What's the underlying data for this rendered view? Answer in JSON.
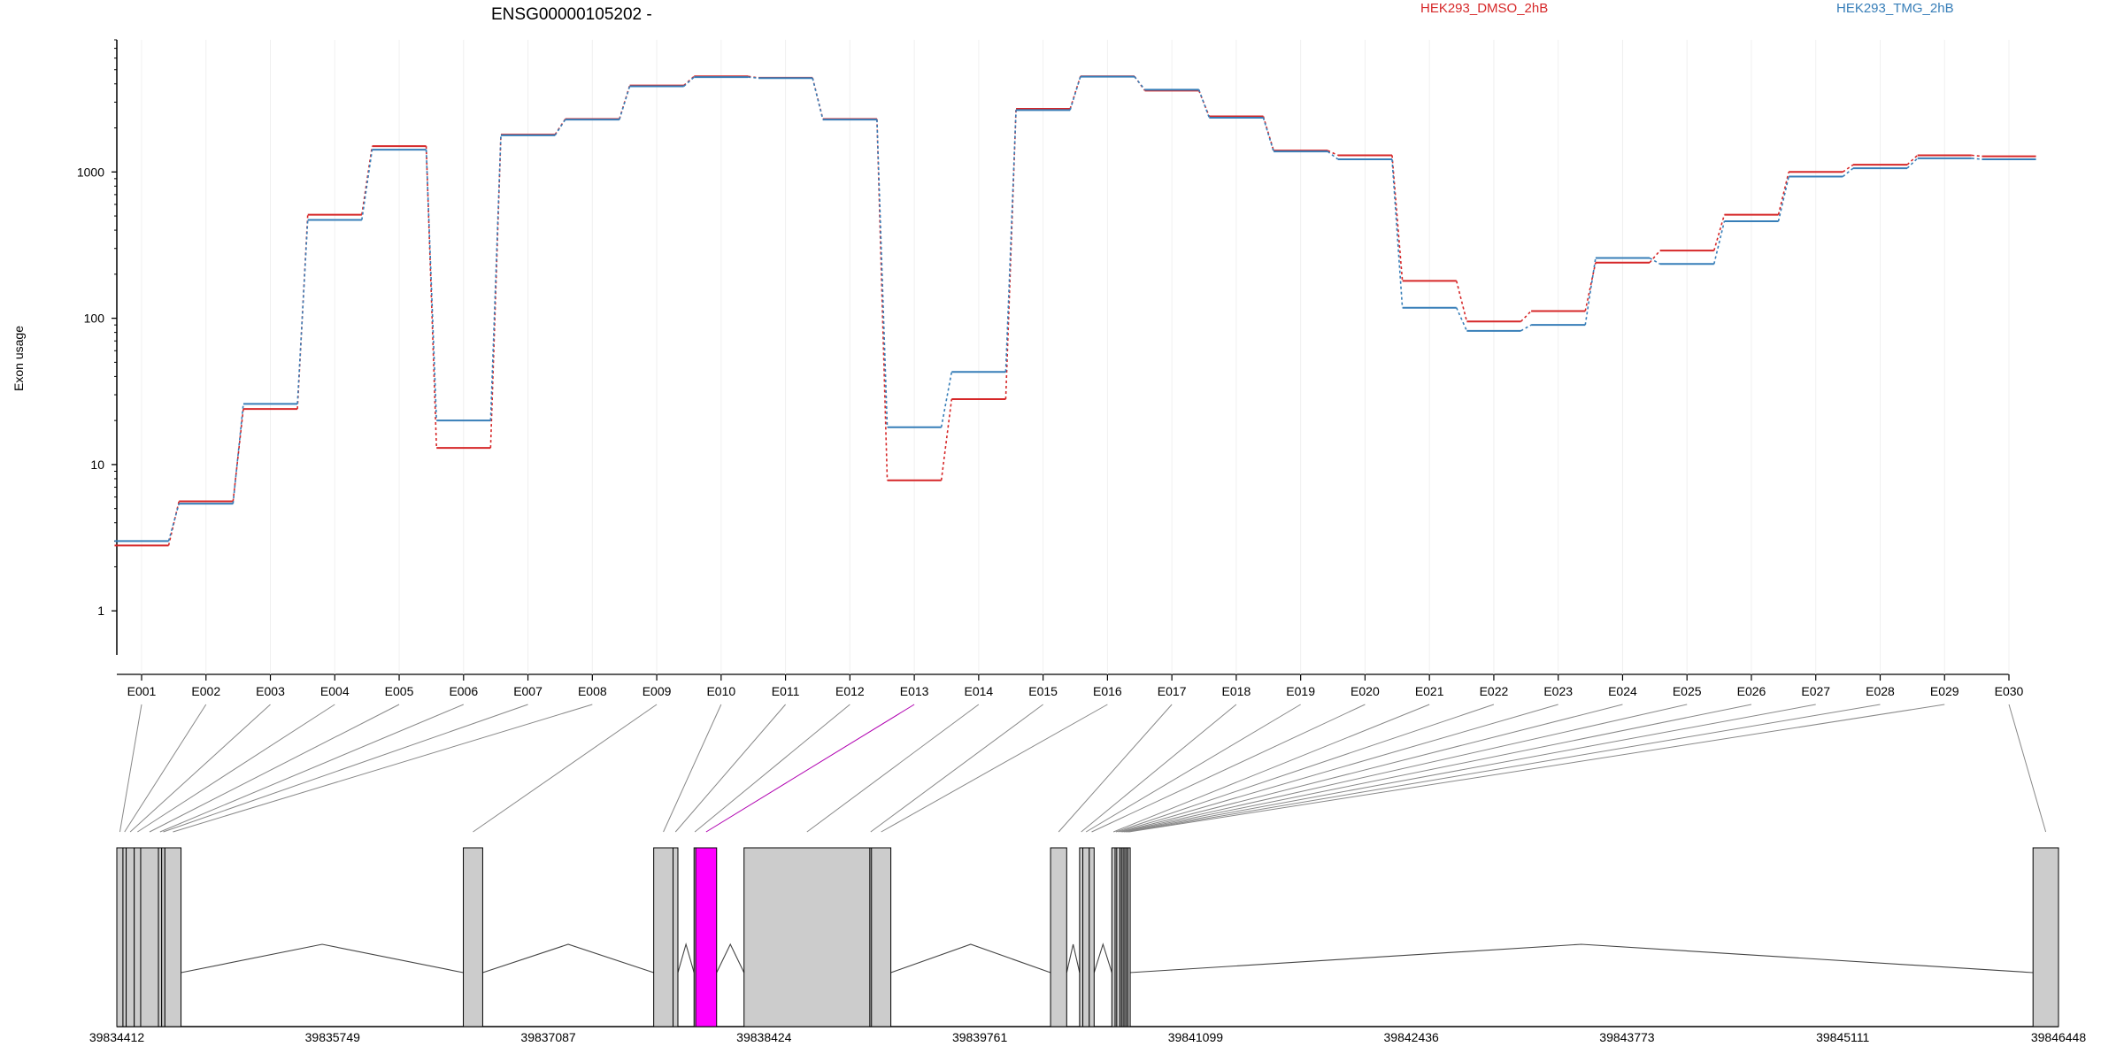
{
  "title": "ENSG00000105202 -",
  "ylabel": "Exon usage",
  "colors": {
    "series1": "#d62728",
    "series2": "#377eb8",
    "highlight": "#ff00ff",
    "exon_fill": "#cccccc"
  },
  "chart_data": {
    "type": "line",
    "title": "ENSG00000105202 -",
    "ylabel": "Exon usage",
    "xlabel": "",
    "yscale": "log",
    "ylim": [
      0.5,
      8000
    ],
    "yticks": [
      {
        "value": 1,
        "label": "1"
      },
      {
        "value": 10,
        "label": "10"
      },
      {
        "value": 100,
        "label": "100"
      },
      {
        "value": 1000,
        "label": "1000"
      }
    ],
    "legend_position": "top",
    "categories": [
      "E001",
      "E002",
      "E003",
      "E004",
      "E005",
      "E006",
      "E007",
      "E008",
      "E009",
      "E010",
      "E011",
      "E012",
      "E013",
      "E014",
      "E015",
      "E016",
      "E017",
      "E018",
      "E019",
      "E020",
      "E021",
      "E022",
      "E023",
      "E024",
      "E025",
      "E026",
      "E027",
      "E028",
      "E029",
      "E030"
    ],
    "series": [
      {
        "name": "HEK293_DMSO_2hB",
        "color": "#d62728",
        "values": [
          2.8,
          5.6,
          24,
          510,
          1500,
          13,
          1800,
          2300,
          3900,
          4500,
          4400,
          2300,
          7.8,
          28,
          2700,
          4500,
          3600,
          2400,
          1400,
          1300,
          180,
          95,
          112,
          240,
          290,
          510,
          1000,
          1120,
          1300,
          1280
        ]
      },
      {
        "name": "HEK293_TMG_2hB",
        "color": "#377eb8",
        "values": [
          3.0,
          5.4,
          26,
          470,
          1420,
          20,
          1780,
          2280,
          3850,
          4450,
          4380,
          2280,
          18,
          43,
          2650,
          4480,
          3650,
          2350,
          1380,
          1220,
          118,
          82,
          90,
          258,
          235,
          460,
          930,
          1060,
          1240,
          1220
        ]
      }
    ],
    "gene_model": {
      "start": 39834412,
      "end": 39846448,
      "coordinate_ticks": [
        "39834412",
        "39835749",
        "39837087",
        "39838424",
        "39839761",
        "39841099",
        "39842436",
        "39843773",
        "39845111",
        "39846448"
      ],
      "highlighted_exon": "E013",
      "exons": [
        {
          "id": "E001",
          "start": 39834412,
          "end": 39834450
        },
        {
          "id": "E002",
          "start": 39834450,
          "end": 39834470
        },
        {
          "id": "E003",
          "start": 39834470,
          "end": 39834520
        },
        {
          "id": "E004",
          "start": 39834520,
          "end": 39834560
        },
        {
          "id": "E005",
          "start": 39834560,
          "end": 39834670
        },
        {
          "id": "E006",
          "start": 39834670,
          "end": 39834690
        },
        {
          "id": "E007",
          "start": 39834690,
          "end": 39834710
        },
        {
          "id": "E008",
          "start": 39834710,
          "end": 39834810
        },
        {
          "id": "E009",
          "start": 39836560,
          "end": 39836680
        },
        {
          "id": "E010",
          "start": 39837740,
          "end": 39837860
        },
        {
          "id": "E011",
          "start": 39837860,
          "end": 39837890
        },
        {
          "id": "E012",
          "start": 39837990,
          "end": 39838000
        },
        {
          "id": "E013",
          "start": 39838000,
          "end": 39838130
        },
        {
          "id": "E014",
          "start": 39838300,
          "end": 39839080
        },
        {
          "id": "E015",
          "start": 39839080,
          "end": 39839090
        },
        {
          "id": "E016",
          "start": 39839090,
          "end": 39839210
        },
        {
          "id": "E017",
          "start": 39840200,
          "end": 39840300
        },
        {
          "id": "E018",
          "start": 39840380,
          "end": 39840400
        },
        {
          "id": "E019",
          "start": 39840400,
          "end": 39840440
        },
        {
          "id": "E020",
          "start": 39840440,
          "end": 39840470
        },
        {
          "id": "E021",
          "start": 39840580,
          "end": 39840600
        },
        {
          "id": "E022",
          "start": 39840600,
          "end": 39840610
        },
        {
          "id": "E023",
          "start": 39840610,
          "end": 39840630
        },
        {
          "id": "E024",
          "start": 39840630,
          "end": 39840640
        },
        {
          "id": "E025",
          "start": 39840640,
          "end": 39840650
        },
        {
          "id": "E026",
          "start": 39840650,
          "end": 39840660
        },
        {
          "id": "E027",
          "start": 39840660,
          "end": 39840670
        },
        {
          "id": "E028",
          "start": 39840670,
          "end": 39840680
        },
        {
          "id": "E029",
          "start": 39840680,
          "end": 39840690
        },
        {
          "id": "E030",
          "start": 39846290,
          "end": 39846448
        }
      ],
      "introns": [
        [
          39834810,
          39836560
        ],
        [
          39836680,
          39837740
        ],
        [
          39837890,
          39837990
        ],
        [
          39838130,
          39838300
        ],
        [
          39839210,
          39840200
        ],
        [
          39840300,
          39840380
        ],
        [
          39840470,
          39840580
        ],
        [
          39840690,
          39846290
        ]
      ]
    }
  }
}
